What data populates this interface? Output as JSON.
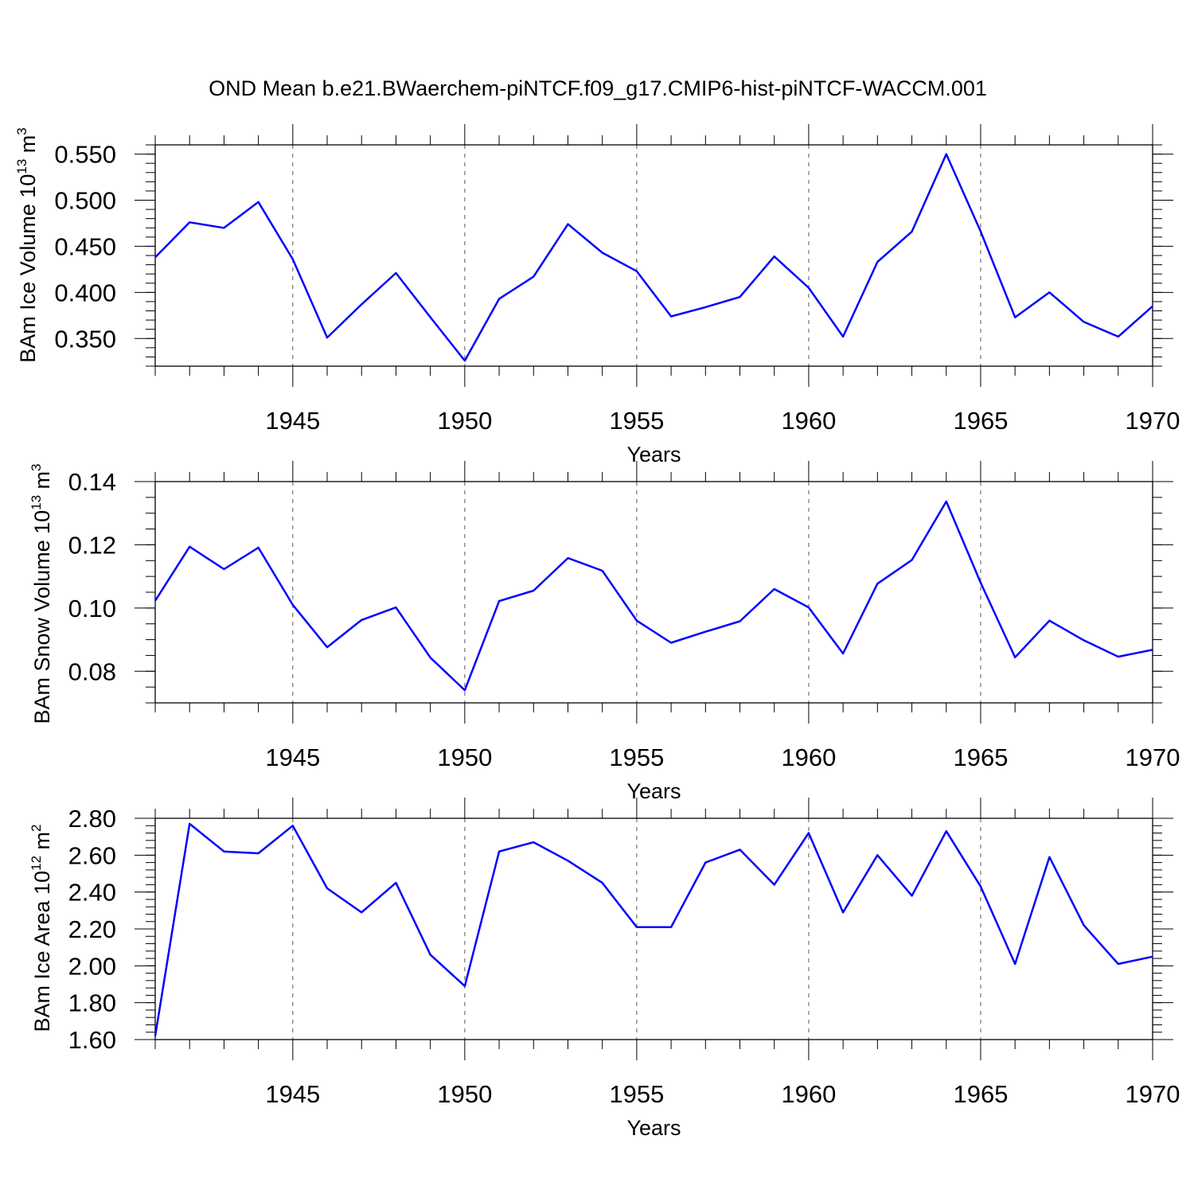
{
  "chart_data": [
    {
      "type": "line",
      "title": "OND Mean b.e21.BWaerchem-piNTCF.f09_g17.CMIP6-hist-piNTCF-WACCM.001",
      "ylabel": {
        "text": "BAm Ice Volume 10",
        "exp": "13",
        "unit": " m",
        "unit_exp": "3"
      },
      "xlabel": "Years",
      "xlim": [
        1941,
        1970
      ],
      "ylim": [
        0.32,
        0.56
      ],
      "yticks_major": [
        0.35,
        0.4,
        0.45,
        0.5,
        0.55
      ],
      "ytick_labels": [
        "0.350",
        "0.400",
        "0.450",
        "0.500",
        "0.550"
      ],
      "ytick_minor_step": 0.01,
      "xticks_major": [
        1945,
        1950,
        1955,
        1960,
        1965,
        1970
      ],
      "xtick_labels": [
        "1945",
        "1950",
        "1955",
        "1960",
        "1965",
        "1970"
      ],
      "grid": "vertical dashed at major x ticks",
      "color": "#0000ff",
      "x": [
        1941,
        1942,
        1943,
        1944,
        1945,
        1946,
        1947,
        1948,
        1949,
        1950,
        1951,
        1952,
        1953,
        1954,
        1955,
        1956,
        1957,
        1958,
        1959,
        1960,
        1961,
        1962,
        1963,
        1964,
        1965,
        1966,
        1967,
        1968,
        1969,
        1970
      ],
      "series": [
        {
          "values": [
            0.438,
            0.476,
            0.47,
            0.498,
            0.436,
            0.351,
            0.387,
            0.421,
            0.373,
            0.326,
            0.393,
            0.417,
            0.474,
            0.443,
            0.423,
            0.374,
            0.384,
            0.395,
            0.439,
            0.405,
            0.352,
            0.433,
            0.466,
            0.55,
            0.466,
            0.373,
            0.4,
            0.368,
            0.352,
            0.385
          ]
        }
      ]
    },
    {
      "type": "line",
      "ylabel": {
        "text": "BAm Snow Volume 10",
        "exp": "13",
        "unit": " m",
        "unit_exp": "3"
      },
      "xlabel": "Years",
      "xlim": [
        1941,
        1970
      ],
      "ylim": [
        0.07,
        0.14
      ],
      "yticks_major": [
        0.08,
        0.1,
        0.12,
        0.14
      ],
      "ytick_labels": [
        "0.08",
        "0.10",
        "0.12",
        "0.14"
      ],
      "ytick_minor_step": 0.005,
      "xticks_major": [
        1945,
        1950,
        1955,
        1960,
        1965,
        1970
      ],
      "xtick_labels": [
        "1945",
        "1950",
        "1955",
        "1960",
        "1965",
        "1970"
      ],
      "grid": "vertical dashed at major x ticks",
      "color": "#0000ff",
      "x": [
        1941,
        1942,
        1943,
        1944,
        1945,
        1946,
        1947,
        1948,
        1949,
        1950,
        1951,
        1952,
        1953,
        1954,
        1955,
        1956,
        1957,
        1958,
        1959,
        1960,
        1961,
        1962,
        1963,
        1964,
        1965,
        1966,
        1967,
        1968,
        1969,
        1970
      ],
      "series": [
        {
          "values": [
            0.1023,
            0.1194,
            0.1123,
            0.1191,
            0.101,
            0.0876,
            0.0962,
            0.1002,
            0.0843,
            0.074,
            0.1022,
            0.1055,
            0.1158,
            0.1118,
            0.096,
            0.089,
            0.0925,
            0.0958,
            0.106,
            0.1002,
            0.0856,
            0.1077,
            0.1152,
            0.1337,
            0.108,
            0.0844,
            0.096,
            0.0898,
            0.0846,
            0.0868
          ]
        }
      ]
    },
    {
      "type": "line",
      "ylabel": {
        "text": "BAm Ice Area 10",
        "exp": "12",
        "unit": " m",
        "unit_exp": "2"
      },
      "xlabel": "Years",
      "xlim": [
        1941,
        1970
      ],
      "ylim": [
        1.6,
        2.8
      ],
      "yticks_major": [
        1.6,
        1.8,
        2.0,
        2.2,
        2.4,
        2.6,
        2.8
      ],
      "ytick_labels": [
        "1.60",
        "1.80",
        "2.00",
        "2.20",
        "2.40",
        "2.60",
        "2.80"
      ],
      "ytick_minor_step": 0.04,
      "xticks_major": [
        1945,
        1950,
        1955,
        1960,
        1965,
        1970
      ],
      "xtick_labels": [
        "1945",
        "1950",
        "1955",
        "1960",
        "1965",
        "1970"
      ],
      "grid": "vertical dashed at major x ticks",
      "color": "#0000ff",
      "x": [
        1941,
        1942,
        1943,
        1944,
        1945,
        1946,
        1947,
        1948,
        1949,
        1950,
        1951,
        1952,
        1953,
        1954,
        1955,
        1956,
        1957,
        1958,
        1959,
        1960,
        1961,
        1962,
        1963,
        1964,
        1965,
        1966,
        1967,
        1968,
        1969,
        1970
      ],
      "series": [
        {
          "values": [
            1.62,
            2.77,
            2.62,
            2.61,
            2.76,
            2.42,
            2.29,
            2.45,
            2.06,
            1.89,
            2.62,
            2.67,
            2.57,
            2.45,
            2.21,
            2.21,
            2.56,
            2.63,
            2.44,
            2.72,
            2.29,
            2.6,
            2.38,
            2.73,
            2.43,
            2.01,
            2.59,
            2.22,
            2.01,
            2.05
          ]
        }
      ]
    }
  ]
}
